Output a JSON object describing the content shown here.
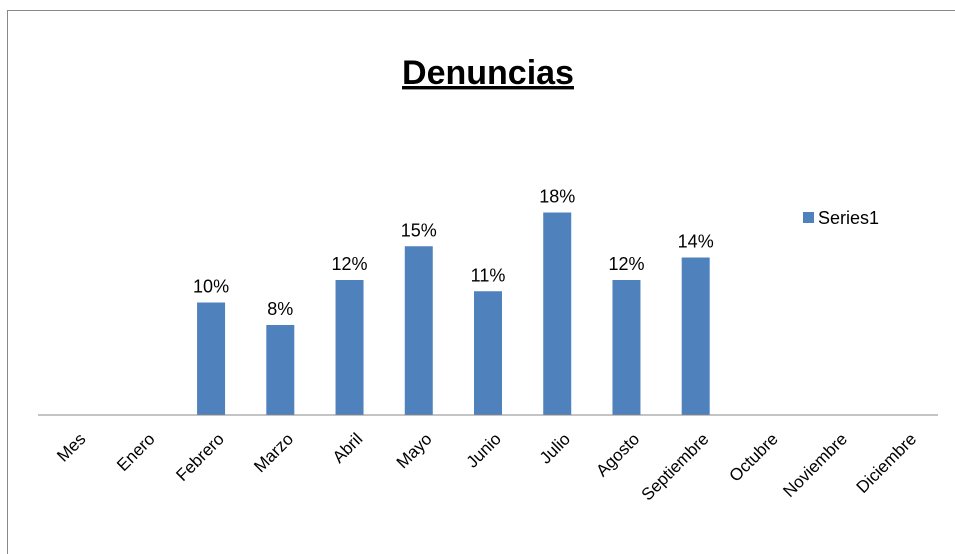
{
  "chart_data": {
    "type": "bar",
    "title": "Denuncias",
    "categories": [
      "Mes",
      "Enero",
      "Febrero",
      "Marzo",
      "Abril",
      "Mayo",
      "Junio",
      "Julio",
      "Agosto",
      "Septiembre",
      "Octubre",
      "Noviembre",
      "Diciembre"
    ],
    "series": [
      {
        "name": "Series1",
        "color": "#4f81bd",
        "values": [
          null,
          null,
          10,
          8,
          12,
          15,
          11,
          18,
          12,
          14,
          null,
          null,
          null
        ],
        "value_labels": [
          null,
          null,
          "10%",
          "8%",
          "12%",
          "15%",
          "11%",
          "18%",
          "12%",
          "14%",
          null,
          null,
          null
        ]
      }
    ],
    "ylim": [
      0,
      20
    ],
    "legend": "right"
  }
}
